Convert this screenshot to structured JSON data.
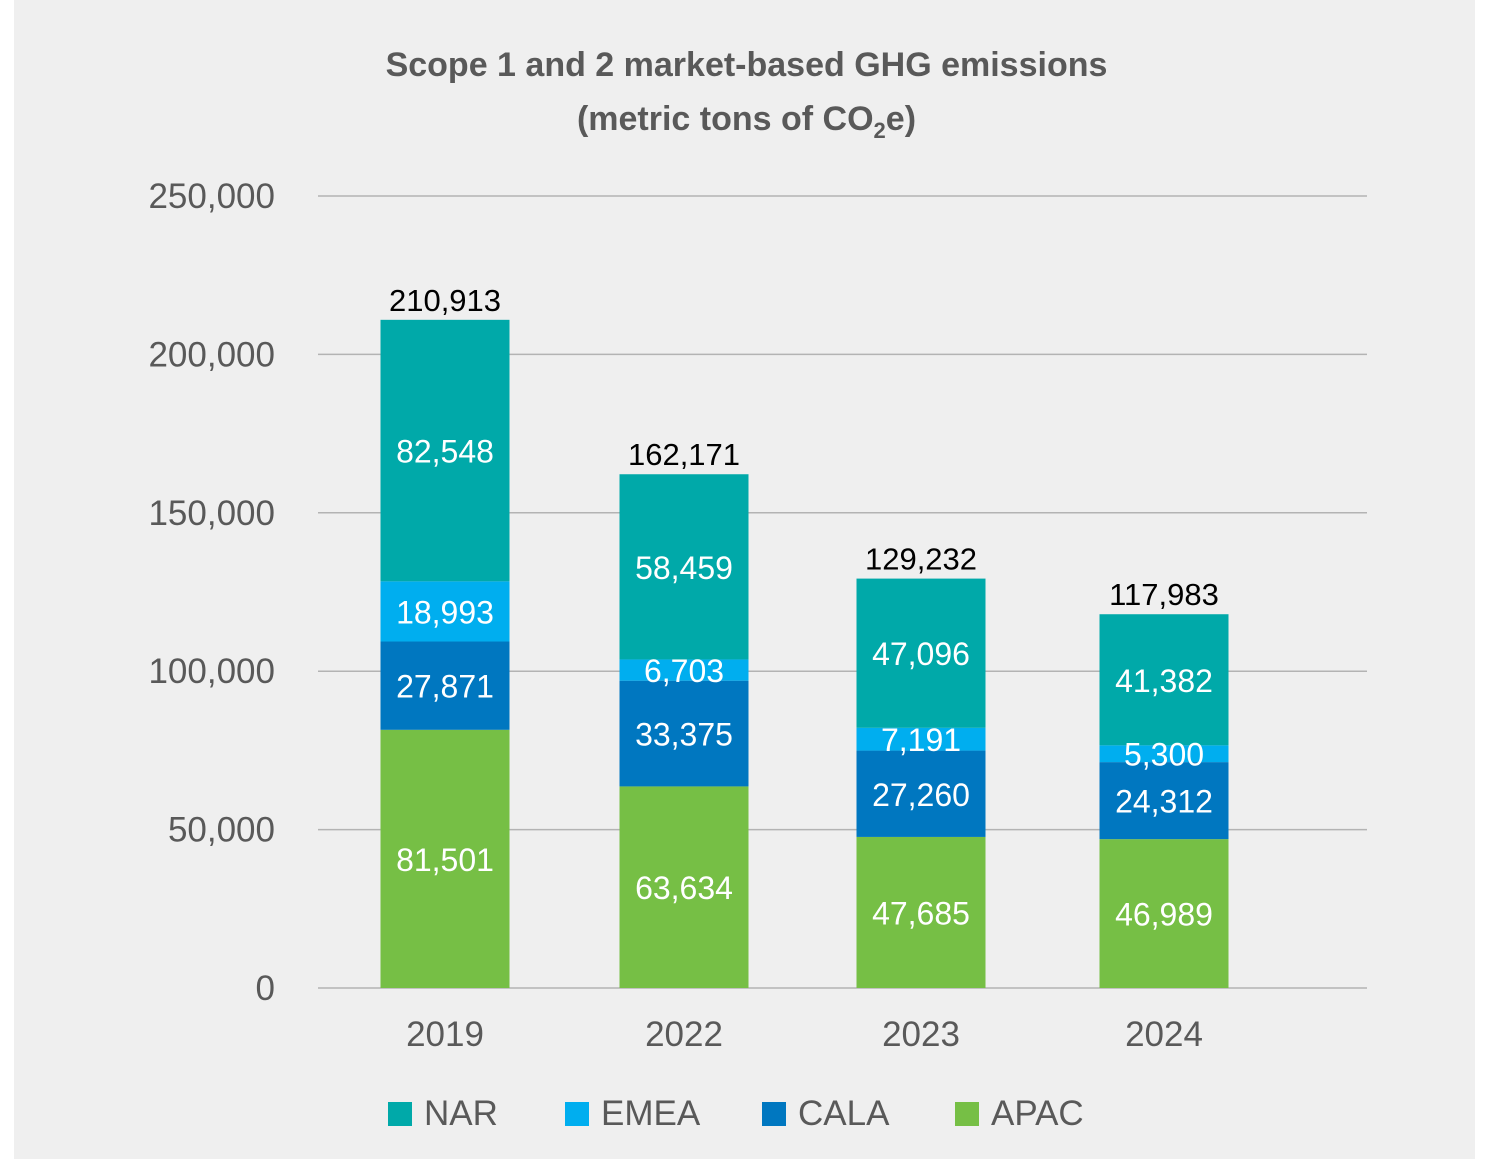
{
  "title_line_1": "Scope 1 and 2 market-based GHG emissions",
  "title_line_2_prefix": "(metric tons of CO",
  "title_line_2_sub": "2",
  "title_line_2_suffix": "e)",
  "chart_data": {
    "type": "bar",
    "stacked": true,
    "title": "Scope 1 and 2 market-based GHG emissions (metric tons of CO2e)",
    "categories": [
      "2019",
      "2022",
      "2023",
      "2024"
    ],
    "series": [
      {
        "name": "APAC",
        "color": "#76bf45",
        "values": [
          81501,
          63634,
          47685,
          46989
        ],
        "labels": [
          "81,501",
          "63,634",
          "47,685",
          "46,989"
        ]
      },
      {
        "name": "CALA",
        "color": "#0077c0",
        "values": [
          27871,
          33375,
          27260,
          24312
        ],
        "labels": [
          "27,871",
          "33,375",
          "27,260",
          "24,312"
        ]
      },
      {
        "name": "EMEA",
        "color": "#00aeef",
        "values": [
          18993,
          6703,
          7191,
          5300
        ],
        "labels": [
          "18,993",
          "6,703",
          "7,191",
          "5,300"
        ]
      },
      {
        "name": "NAR",
        "color": "#00a9a9",
        "values": [
          82548,
          58459,
          47096,
          41382
        ],
        "labels": [
          "82,548",
          "58,459",
          "47,096",
          "41,382"
        ]
      }
    ],
    "totals": [
      210913,
      162171,
      129232,
      117983
    ],
    "total_labels": [
      "210,913",
      "162,171",
      "129,232",
      "117,983"
    ],
    "ylim": [
      0,
      250000
    ],
    "yticks": [
      0,
      50000,
      100000,
      150000,
      200000,
      250000
    ],
    "ytick_labels": [
      "0",
      "50,000",
      "100,000",
      "150,000",
      "200,000",
      "250,000"
    ],
    "grid": true,
    "legend_position": "bottom",
    "legend_order": [
      "NAR",
      "EMEA",
      "CALA",
      "APAC"
    ]
  }
}
